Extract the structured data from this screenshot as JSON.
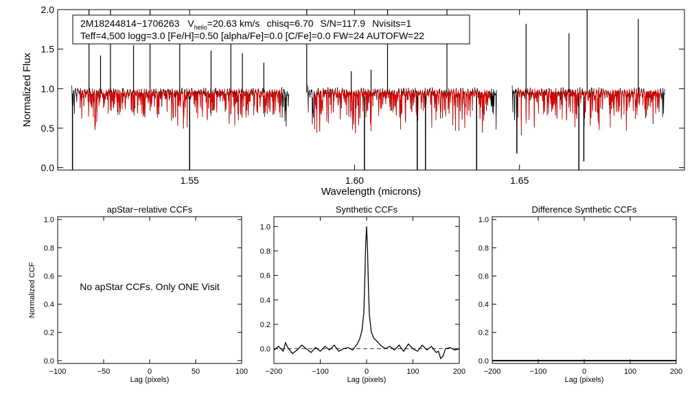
{
  "chart_data": [
    {
      "id": "spectrum",
      "type": "line",
      "info_box": {
        "star_id": "2M18244814−1706263",
        "vhelio_prefix": "V",
        "vhelio_sub": "helio",
        "vhelio_rest": "=20.63 km/s",
        "chisq": "chisq=6.70",
        "snr": "S/N=117.9",
        "nvisits": "Nvisits=1",
        "line2": "Teff=4,500 logg=3.0 [Fe/H]=0.50 [alpha/Fe]=0.0 [C/Fe]=0.0 FW=24 AUTOFW=22"
      },
      "xlabel": "Wavelength (microns)",
      "ylabel": "Normalized Flux",
      "xlim": [
        1.51,
        1.7
      ],
      "ylim": [
        -0.03,
        2.0
      ],
      "xticks": [
        1.55,
        1.6,
        1.65
      ],
      "xtick_labels": [
        "1.55",
        "1.60",
        "1.65"
      ],
      "yticks": [
        0.0,
        0.5,
        1.0,
        1.5,
        2.0
      ],
      "ytick_labels": [
        "0.0",
        "0.5",
        "1.0",
        "1.5",
        "2.0"
      ],
      "chips": [
        [
          1.5145,
          1.58
        ],
        [
          1.586,
          1.643
        ],
        [
          1.648,
          1.694
        ]
      ],
      "series": [
        {
          "name": "observed",
          "color": "#000000"
        },
        {
          "name": "synthetic",
          "color": "#e00000"
        }
      ],
      "emission_spikes": [
        [
          1.5195,
          2.0
        ],
        [
          1.523,
          1.42
        ],
        [
          1.526,
          2.0
        ],
        [
          1.533,
          1.55
        ],
        [
          1.538,
          2.0
        ],
        [
          1.547,
          1.8
        ],
        [
          1.5565,
          1.48
        ],
        [
          1.5625,
          1.62
        ],
        [
          1.566,
          1.45
        ],
        [
          1.5725,
          1.33
        ],
        [
          1.5855,
          2.0
        ],
        [
          1.599,
          1.22
        ],
        [
          1.605,
          1.24
        ],
        [
          1.61,
          2.0
        ],
        [
          1.628,
          2.0
        ],
        [
          1.652,
          1.82
        ],
        [
          1.665,
          1.7
        ],
        [
          1.6705,
          2.0
        ],
        [
          1.686,
          1.88
        ]
      ],
      "absorption_lines": [
        [
          1.5145,
          -0.05
        ],
        [
          1.55,
          -0.05
        ],
        [
          1.603,
          -0.05
        ],
        [
          1.619,
          -0.05
        ],
        [
          1.6215,
          -0.05
        ],
        [
          1.637,
          -0.05
        ],
        [
          1.6492,
          0.18
        ],
        [
          1.668,
          -0.05
        ],
        [
          1.6695,
          0.08
        ]
      ]
    },
    {
      "id": "apstar-relative-ccf",
      "type": "line",
      "title": "apStar−relative CCFs",
      "xlabel": "Lag (pixels)",
      "ylabel": "Normalized CCF",
      "xlim": [
        -100,
        100
      ],
      "ylim": [
        -0.02,
        1.02
      ],
      "xticks": [
        -100,
        -50,
        0,
        50,
        100
      ],
      "xtick_labels": [
        "−100",
        "−50",
        "0",
        "50",
        "100"
      ],
      "yticks": [
        0.0,
        0.2,
        0.4,
        0.6,
        0.8,
        1.0
      ],
      "ytick_labels": [
        "0.0",
        "0.2",
        "0.4",
        "0.6",
        "0.8",
        "1.0"
      ],
      "annotation": "No apStar CCFs.  Only ONE Visit",
      "series": []
    },
    {
      "id": "synthetic-ccf",
      "type": "line",
      "title": "Synthetic CCFs",
      "xlabel": "Lag (pixels)",
      "ylabel": "",
      "xlim": [
        -200,
        200
      ],
      "ylim": [
        -0.12,
        1.08
      ],
      "xticks": [
        -200,
        -100,
        0,
        100,
        200
      ],
      "xtick_labels": [
        "−200",
        "−100",
        "0",
        "100",
        "200"
      ],
      "yticks": [
        0.0,
        0.2,
        0.4,
        0.6,
        0.8,
        1.0
      ],
      "ytick_labels": [
        "0.0",
        "0.2",
        "0.4",
        "0.6",
        "0.8",
        "1.0"
      ],
      "reference_line": 0.0,
      "series": [
        {
          "name": "ccf",
          "color": "#000000",
          "x": [
            -200,
            -190,
            -180,
            -175,
            -170,
            -160,
            -150,
            -140,
            -130,
            -120,
            -110,
            -100,
            -90,
            -80,
            -70,
            -60,
            -50,
            -40,
            -30,
            -20,
            -15,
            -10,
            -6,
            -4,
            -2,
            0,
            2,
            4,
            6,
            10,
            15,
            20,
            30,
            40,
            50,
            60,
            70,
            80,
            90,
            100,
            110,
            120,
            130,
            140,
            150,
            155,
            160,
            165,
            170,
            180,
            190,
            200
          ],
          "y": [
            -0.01,
            0.02,
            -0.02,
            0.05,
            0.01,
            -0.04,
            -0.01,
            0.03,
            0.0,
            -0.03,
            0.01,
            -0.02,
            0.02,
            -0.01,
            0.03,
            -0.02,
            0.0,
            0.01,
            -0.01,
            0.04,
            0.08,
            0.15,
            0.3,
            0.55,
            0.85,
            1.0,
            0.8,
            0.5,
            0.28,
            0.14,
            0.09,
            0.07,
            0.03,
            0.0,
            0.02,
            -0.01,
            0.03,
            -0.02,
            0.04,
            0.0,
            -0.02,
            0.03,
            -0.01,
            0.02,
            -0.03,
            -0.02,
            -0.08,
            -0.06,
            0.0,
            0.01,
            -0.01,
            0.0
          ]
        }
      ]
    },
    {
      "id": "difference-synthetic-ccf",
      "type": "line",
      "title": "Difference Synthetic CCFs",
      "xlabel": "Lag (pixels)",
      "ylabel": "",
      "xlim": [
        -200,
        200
      ],
      "ylim": [
        -0.02,
        1.02
      ],
      "xticks": [
        -200,
        -100,
        0,
        100,
        200
      ],
      "xtick_labels": [
        "−200",
        "−100",
        "0",
        "100",
        "200"
      ],
      "yticks": [
        0.0,
        0.2,
        0.4,
        0.6,
        0.8,
        1.0
      ],
      "ytick_labels": [
        "0.0",
        "0.2",
        "0.4",
        "0.6",
        "0.8",
        "1.0"
      ],
      "series": []
    }
  ]
}
